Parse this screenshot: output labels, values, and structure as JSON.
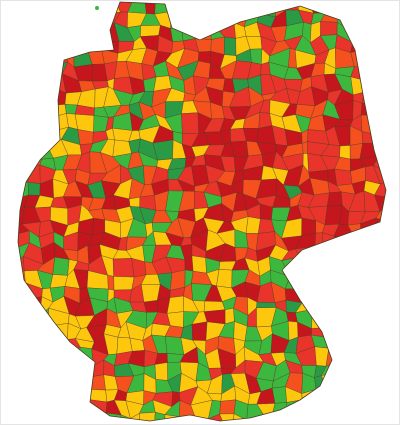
{
  "map": {
    "type": "choropleth",
    "palette": [
      "#c4161c",
      "#e8342a",
      "#f4511e",
      "#fdc70e",
      "#3db83f",
      "#2b9a45"
    ],
    "border": "#4a3a20"
  }
}
